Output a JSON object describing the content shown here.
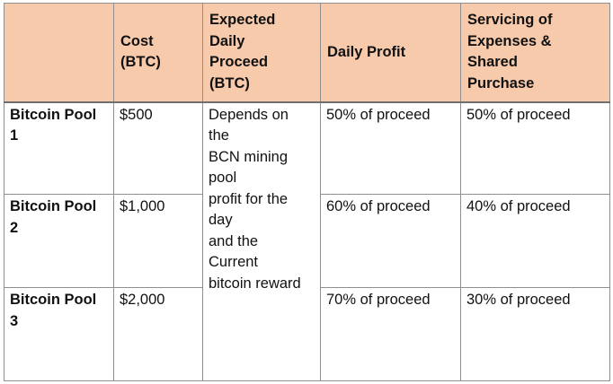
{
  "table": {
    "headers": [
      {
        "id": "pool",
        "lines": []
      },
      {
        "id": "cost",
        "lines": [
          "Cost",
          "(BTC)"
        ]
      },
      {
        "id": "proceed",
        "lines": [
          "Expected",
          "Daily",
          "Proceed",
          "(BTC)"
        ]
      },
      {
        "id": "profit",
        "lines": [
          "Daily Profit"
        ]
      },
      {
        "id": "servicing",
        "lines": [
          "Servicing of",
          "Expenses &",
          "Shared",
          "Purchase"
        ]
      }
    ],
    "rows": [
      {
        "pool": [
          "Bitcoin Pool",
          "1"
        ],
        "cost": "$500",
        "profit": "50% of proceed",
        "servicing": "50% of proceed"
      },
      {
        "pool": [
          "Bitcoin Pool",
          "2"
        ],
        "cost": "$1,000",
        "profit": "60% of proceed",
        "servicing": "40% of proceed"
      },
      {
        "pool": [
          "Bitcoin Pool",
          "3"
        ],
        "cost": "$2,000",
        "profit": "70% of proceed",
        "servicing": "30% of proceed"
      }
    ],
    "merged_proceed": [
      "Depends on",
      "the",
      "BCN mining",
      "pool",
      "profit for the",
      "day",
      "and the",
      "Current",
      "bitcoin reward"
    ]
  },
  "colors": {
    "header_background": "#f7caac",
    "border": "#8f8f8f"
  }
}
